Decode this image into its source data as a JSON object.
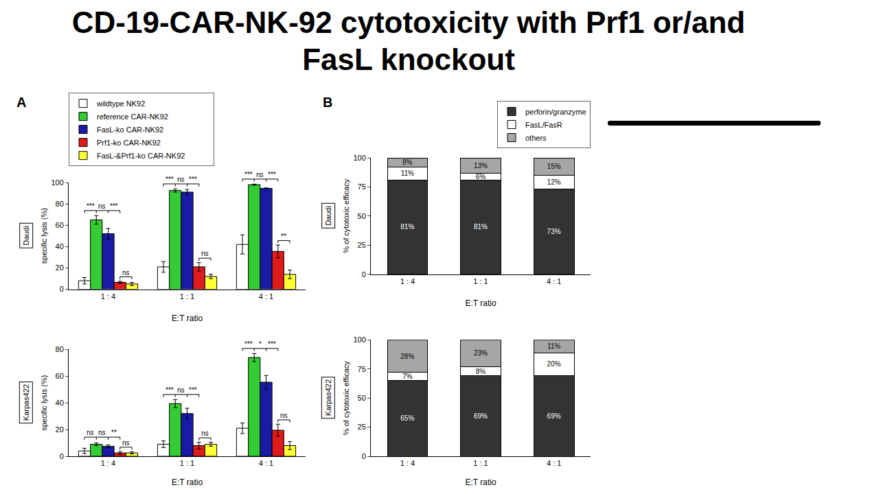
{
  "slide": {
    "title": "CD-19-CAR-NK-92 cytotoxicity with Prf1 or/and FasL knockout",
    "panels": [
      "A",
      "B"
    ]
  },
  "chart_data": [
    {
      "type": "bar",
      "title": "Daudi",
      "xlabel": "E:T ratio",
      "ylabel": "specific lysis (%)",
      "categories": [
        "1 : 4",
        "1 : 1",
        "4 : 1"
      ],
      "series": [
        {
          "name": "wildtype NK92",
          "color": "#ffffff",
          "values": [
            8,
            21,
            42
          ],
          "errors": [
            3,
            5,
            9
          ]
        },
        {
          "name": "reference CAR-NK92",
          "color": "#33cc33",
          "values": [
            65,
            92.5,
            98
          ],
          "errors": [
            4,
            1.5,
            0.5
          ]
        },
        {
          "name": "FasL-ko CAR-NK92",
          "color": "#1a1aa6",
          "values": [
            52,
            91,
            94.5
          ],
          "errors": [
            5,
            2.5,
            0.5
          ]
        },
        {
          "name": "Prf1-ko CAR-NK92",
          "color": "#e01b1b",
          "values": [
            6.5,
            21,
            35.5
          ],
          "errors": [
            1,
            4,
            6
          ]
        },
        {
          "name": "FasL-&Prf1-ko CAR-NK92",
          "color": "#ffff33",
          "values": [
            5,
            12,
            14
          ],
          "errors": [
            1.5,
            2,
            4
          ]
        }
      ],
      "significance": [
        {
          "category": "1 : 4",
          "pair": [
            "reference CAR-NK92",
            "wildtype NK92"
          ],
          "label": "***"
        },
        {
          "category": "1 : 4",
          "pair": [
            "reference CAR-NK92",
            "FasL-ko CAR-NK92"
          ],
          "label": "ns"
        },
        {
          "category": "1 : 4",
          "pair": [
            "reference CAR-NK92",
            "Prf1-ko CAR-NK92"
          ],
          "label": "***"
        },
        {
          "category": "1 : 4",
          "pair": [
            "Prf1-ko CAR-NK92",
            "FasL-&Prf1-ko CAR-NK92"
          ],
          "label": "ns"
        },
        {
          "category": "1 : 1",
          "pair": [
            "reference CAR-NK92",
            "wildtype NK92"
          ],
          "label": "***"
        },
        {
          "category": "1 : 1",
          "pair": [
            "reference CAR-NK92",
            "FasL-ko CAR-NK92"
          ],
          "label": "ns"
        },
        {
          "category": "1 : 1",
          "pair": [
            "reference CAR-NK92",
            "Prf1-ko CAR-NK92"
          ],
          "label": "***"
        },
        {
          "category": "1 : 1",
          "pair": [
            "Prf1-ko CAR-NK92",
            "FasL-&Prf1-ko CAR-NK92"
          ],
          "label": "ns"
        },
        {
          "category": "4 : 1",
          "pair": [
            "reference CAR-NK92",
            "wildtype NK92"
          ],
          "label": "***"
        },
        {
          "category": "4 : 1",
          "pair": [
            "reference CAR-NK92",
            "FasL-ko CAR-NK92"
          ],
          "label": "ns"
        },
        {
          "category": "4 : 1",
          "pair": [
            "reference CAR-NK92",
            "Prf1-ko CAR-NK92"
          ],
          "label": "***"
        },
        {
          "category": "4 : 1",
          "pair": [
            "Prf1-ko CAR-NK92",
            "FasL-&Prf1-ko CAR-NK92"
          ],
          "label": "**"
        }
      ],
      "ylim": [
        0,
        100
      ],
      "yticks": [
        0,
        20,
        40,
        60,
        80,
        100
      ],
      "grid": false,
      "legend": "top"
    },
    {
      "type": "bar",
      "title": "Karpas422",
      "xlabel": "E:T ratio",
      "ylabel": "specific lysis (%)",
      "categories": [
        "1 : 4",
        "1 : 1",
        "4 : 1"
      ],
      "series": [
        {
          "name": "wildtype NK92",
          "color": "#ffffff",
          "values": [
            4,
            9,
            21
          ],
          "errors": [
            2,
            2.5,
            4
          ]
        },
        {
          "name": "reference CAR-NK92",
          "color": "#33cc33",
          "values": [
            9,
            39.5,
            74
          ],
          "errors": [
            1,
            3,
            3
          ]
        },
        {
          "name": "FasL-ko CAR-NK92",
          "color": "#1a1aa6",
          "values": [
            7.5,
            32,
            55.5
          ],
          "errors": [
            1,
            4,
            5
          ]
        },
        {
          "name": "Prf1-ko CAR-NK92",
          "color": "#e01b1b",
          "values": [
            2.5,
            8,
            19.5
          ],
          "errors": [
            1,
            2.5,
            4.5
          ]
        },
        {
          "name": "FasL-&Prf1-ko CAR-NK92",
          "color": "#ffff33",
          "values": [
            2.5,
            9,
            8
          ],
          "errors": [
            0.8,
            1.5,
            3
          ]
        }
      ],
      "significance": [
        {
          "category": "1 : 4",
          "pair": [
            "reference CAR-NK92",
            "wildtype NK92"
          ],
          "label": "ns"
        },
        {
          "category": "1 : 4",
          "pair": [
            "reference CAR-NK92",
            "FasL-ko CAR-NK92"
          ],
          "label": "ns"
        },
        {
          "category": "1 : 4",
          "pair": [
            "reference CAR-NK92",
            "Prf1-ko CAR-NK92"
          ],
          "label": "**"
        },
        {
          "category": "1 : 4",
          "pair": [
            "Prf1-ko CAR-NK92",
            "FasL-&Prf1-ko CAR-NK92"
          ],
          "label": "ns"
        },
        {
          "category": "1 : 1",
          "pair": [
            "reference CAR-NK92",
            "wildtype NK92"
          ],
          "label": "***"
        },
        {
          "category": "1 : 1",
          "pair": [
            "reference CAR-NK92",
            "FasL-ko CAR-NK92"
          ],
          "label": "ns"
        },
        {
          "category": "1 : 1",
          "pair": [
            "reference CAR-NK92",
            "Prf1-ko CAR-NK92"
          ],
          "label": "***"
        },
        {
          "category": "1 : 1",
          "pair": [
            "Prf1-ko CAR-NK92",
            "FasL-&Prf1-ko CAR-NK92"
          ],
          "label": "ns"
        },
        {
          "category": "4 : 1",
          "pair": [
            "reference CAR-NK92",
            "wildtype NK92"
          ],
          "label": "***"
        },
        {
          "category": "4 : 1",
          "pair": [
            "reference CAR-NK92",
            "FasL-ko CAR-NK92"
          ],
          "label": "*"
        },
        {
          "category": "4 : 1",
          "pair": [
            "reference CAR-NK92",
            "Prf1-ko CAR-NK92"
          ],
          "label": "***"
        },
        {
          "category": "4 : 1",
          "pair": [
            "Prf1-ko CAR-NK92",
            "FasL-&Prf1-ko CAR-NK92"
          ],
          "label": "ns"
        }
      ],
      "ylim": [
        0,
        80
      ],
      "yticks": [
        0,
        20,
        40,
        60,
        80
      ],
      "grid": false
    },
    {
      "type": "bar",
      "title": "Daudi",
      "xlabel": "E:T ratio",
      "ylabel": "% of cytotoxic efficacy",
      "categories": [
        "1 : 4",
        "1 : 1",
        "4 : 1"
      ],
      "stacked": true,
      "data_labels": true,
      "series": [
        {
          "name": "perforin/granzyme",
          "color": "#333333",
          "values": [
            81,
            81,
            73
          ],
          "value_labels": [
            "81%",
            "81%",
            "73%"
          ]
        },
        {
          "name": "FasL/FasR",
          "color": "#ffffff",
          "values": [
            11,
            6,
            12
          ],
          "value_labels": [
            "11%",
            "6%",
            "12%"
          ]
        },
        {
          "name": "others",
          "color": "#a6a6a6",
          "values": [
            8,
            13,
            15
          ],
          "value_labels": [
            "8%",
            "13%",
            "15%"
          ]
        }
      ],
      "ylim": [
        0,
        100
      ],
      "yticks": [
        0,
        25,
        50,
        75,
        100
      ],
      "grid": false,
      "legend": "top right"
    },
    {
      "type": "bar",
      "title": "Karpas422",
      "xlabel": "E:T ratio",
      "ylabel": "% of cytotoxic efficacy",
      "categories": [
        "1 : 4",
        "1 : 1",
        "4 : 1"
      ],
      "stacked": true,
      "data_labels": true,
      "series": [
        {
          "name": "perforin/granzyme",
          "color": "#333333",
          "values": [
            65,
            69,
            69
          ],
          "value_labels": [
            "65%",
            "69%",
            "69%"
          ]
        },
        {
          "name": "FasL/FasR",
          "color": "#ffffff",
          "values": [
            7,
            8,
            20
          ],
          "value_labels": [
            "7%",
            "8%",
            "20%"
          ]
        },
        {
          "name": "others",
          "color": "#a6a6a6",
          "values": [
            28,
            23,
            11
          ],
          "value_labels": [
            "28%",
            "23%",
            "11%"
          ]
        }
      ],
      "ylim": [
        0,
        100
      ],
      "yticks": [
        0,
        25,
        50,
        75,
        100
      ],
      "grid": false
    }
  ]
}
